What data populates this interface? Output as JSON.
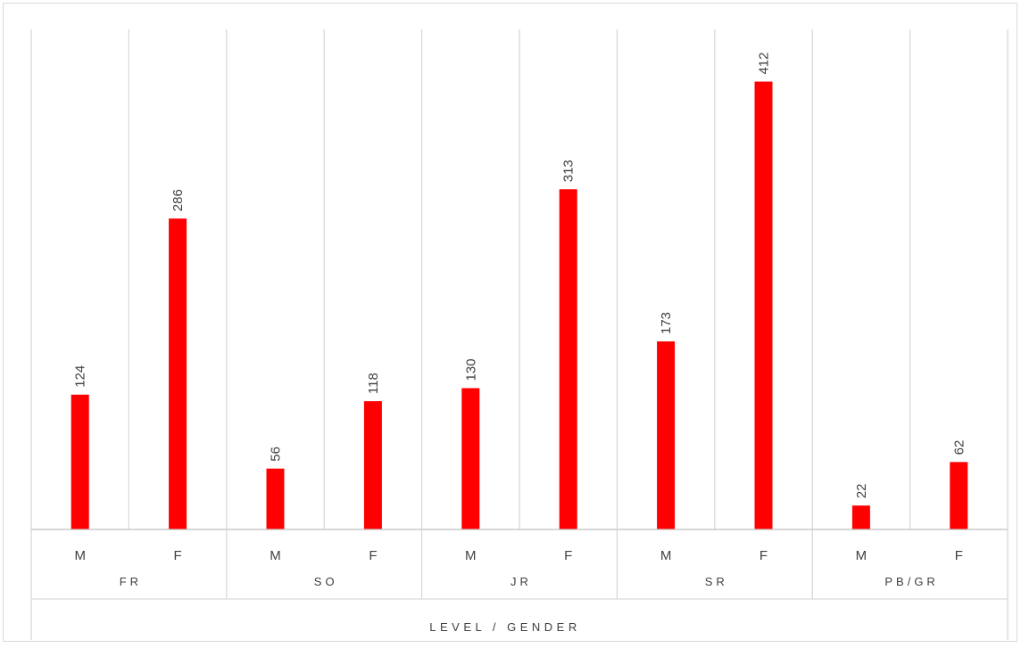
{
  "chart_data": {
    "type": "bar",
    "xlabel": "LEVEL / GENDER",
    "ylabel": "",
    "ylim": [
      0,
      460
    ],
    "grid": true,
    "legend": "none",
    "groups": [
      "FR",
      "SO",
      "JR",
      "SR",
      "PB/GR"
    ],
    "categories": [
      {
        "group": "FR",
        "label": "M"
      },
      {
        "group": "FR",
        "label": "F"
      },
      {
        "group": "SO",
        "label": "M"
      },
      {
        "group": "SO",
        "label": "F"
      },
      {
        "group": "JR",
        "label": "M"
      },
      {
        "group": "JR",
        "label": "F"
      },
      {
        "group": "SR",
        "label": "M"
      },
      {
        "group": "SR",
        "label": "F"
      },
      {
        "group": "PB/GR",
        "label": "M"
      },
      {
        "group": "PB/GR",
        "label": "F"
      }
    ],
    "series": [
      {
        "values": [
          124,
          286,
          56,
          118,
          130,
          313,
          173,
          412,
          22,
          62
        ]
      }
    ],
    "colors": {
      "bar": "#ff0000",
      "grid": "#d9d9d9",
      "text": "#404040"
    }
  }
}
